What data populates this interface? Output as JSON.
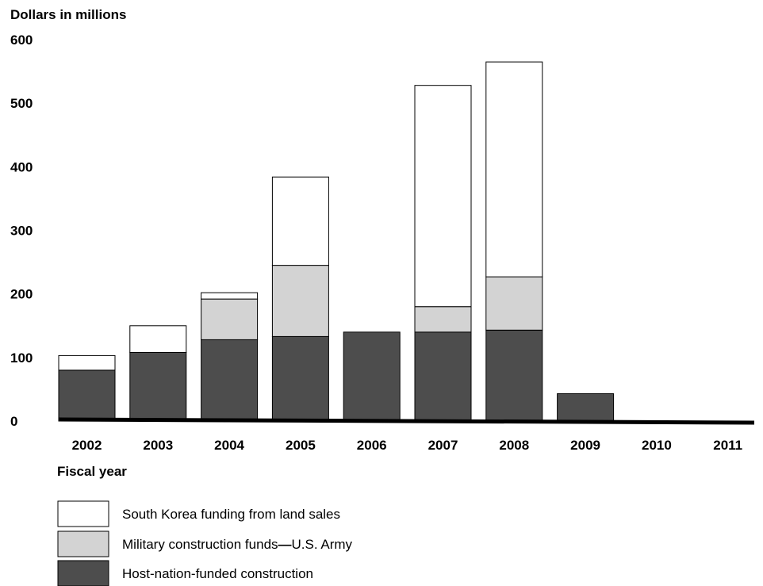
{
  "chart_data": {
    "type": "bar",
    "stacked": true,
    "ylabel": "Dollars in millions",
    "xlabel": "Fiscal year",
    "ylim": [
      0,
      600
    ],
    "yticks": [
      0,
      100,
      200,
      300,
      400,
      500,
      600
    ],
    "grid": false,
    "legend_position": "bottom-left",
    "categories": [
      "2002",
      "2003",
      "2004",
      "2005",
      "2006",
      "2007",
      "2008",
      "2009",
      "2010",
      "2011"
    ],
    "series": [
      {
        "name": "Host-nation-funded construction",
        "color": "#4d4d4d",
        "values": [
          80,
          108,
          128,
          133,
          140,
          140,
          143,
          43,
          0,
          0
        ]
      },
      {
        "name": "Military construction funds",
        "name_suffix": "U.S. Army",
        "color": "#d3d3d3",
        "values": [
          0,
          0,
          64,
          112,
          0,
          40,
          84,
          0,
          0,
          0
        ]
      },
      {
        "name": "South Korea funding from land sales",
        "color": "#ffffff",
        "values": [
          23,
          42,
          10,
          139,
          0,
          348,
          338,
          0,
          0,
          0
        ]
      }
    ],
    "legend_order": [
      2,
      1,
      0
    ]
  }
}
